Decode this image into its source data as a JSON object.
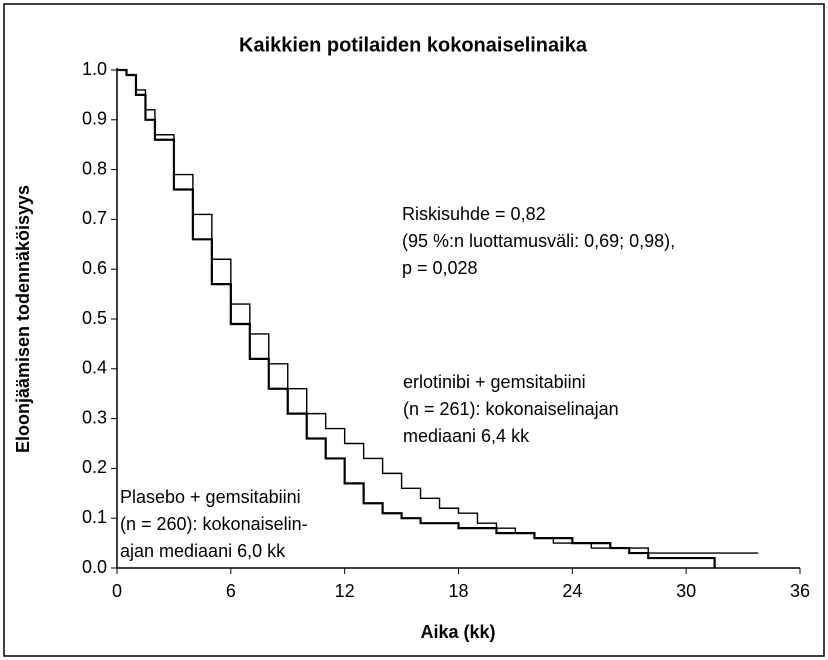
{
  "chart_data": {
    "type": "step",
    "title": "Kaikkien potilaiden kokonaiselinaika",
    "x_label": "Aika (kk)",
    "y_label": "Eloonjäämisen todennäköisyys",
    "xlim": [
      0,
      36
    ],
    "ylim": [
      0,
      1
    ],
    "xticks": [
      0,
      6,
      12,
      18,
      24,
      30,
      36
    ],
    "yticks": [
      {
        "value": 0,
        "label": "0.0"
      },
      0.1,
      0.2,
      0.3,
      0.4,
      0.5,
      0.6,
      0.7,
      0.8,
      0.9,
      {
        "value": 1,
        "label": "1.0"
      }
    ],
    "series": [
      {
        "name": "erlotinibi + gemsitabiini",
        "color": "#000000",
        "x": [
          0,
          0.5,
          1,
          1.5,
          2,
          3,
          4,
          5,
          6,
          7,
          8,
          9,
          10,
          11,
          12,
          13,
          14,
          15,
          16,
          17,
          18,
          19,
          20,
          21,
          22,
          23,
          24,
          25,
          27,
          28,
          33.8
        ],
        "values": [
          1.0,
          0.99,
          0.96,
          0.92,
          0.87,
          0.79,
          0.71,
          0.62,
          0.53,
          0.47,
          0.41,
          0.36,
          0.31,
          0.28,
          0.25,
          0.22,
          0.19,
          0.16,
          0.14,
          0.12,
          0.11,
          0.09,
          0.08,
          0.07,
          0.06,
          0.05,
          0.05,
          0.04,
          0.04,
          0.03,
          0.03
        ]
      },
      {
        "name": "Plasebo + gemsitabiini",
        "color": "#000000",
        "x": [
          0,
          0.5,
          1,
          1.5,
          2,
          3,
          4,
          5,
          6,
          7,
          8,
          9,
          10,
          11,
          12,
          13,
          14,
          15,
          16,
          18,
          20,
          22,
          24,
          26,
          27,
          28,
          31.5
        ],
        "values": [
          1.0,
          0.99,
          0.95,
          0.9,
          0.86,
          0.76,
          0.66,
          0.57,
          0.49,
          0.42,
          0.36,
          0.31,
          0.26,
          0.22,
          0.17,
          0.13,
          0.11,
          0.1,
          0.09,
          0.08,
          0.07,
          0.06,
          0.05,
          0.04,
          0.03,
          0.02,
          0.0
        ]
      }
    ],
    "annotations": [
      {
        "lines": [
          "Riskisuhde = 0,82",
          "(95 %:n luottamusväli: 0,69; 0,98),",
          "p = 0,028"
        ]
      },
      {
        "lines": [
          "erlotinibi + gemsitabiini",
          "(n = 261): kokonaiselinajan",
          "mediaani 6,4 kk"
        ]
      },
      {
        "lines": [
          "Plasebo + gemsitabiini",
          "(n = 260): kokonaiselin-",
          "ajan mediaani 6,0 kk"
        ]
      }
    ]
  }
}
